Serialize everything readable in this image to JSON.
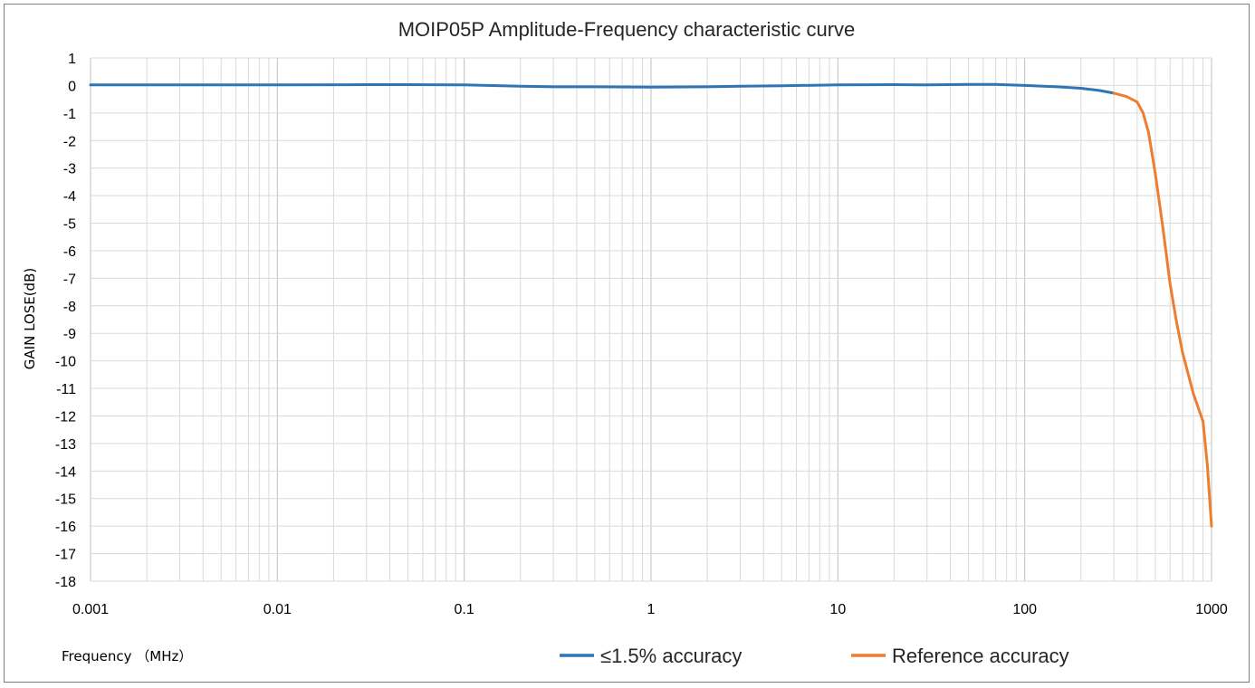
{
  "chart_data": {
    "type": "line",
    "title": "MOIP05P Amplitude-Frequency characteristic curve",
    "xlabel": "Frequency （MHz）",
    "ylabel": "GAIN LOSE(dB)",
    "x_scale": "log",
    "xlim": [
      0.001,
      1000
    ],
    "ylim": [
      -18,
      1
    ],
    "x_ticks": [
      "0.001",
      "0.01",
      "0.1",
      "1",
      "10",
      "100",
      "1000"
    ],
    "y_ticks": [
      "1",
      "0",
      "-1",
      "-2",
      "-3",
      "-4",
      "-5",
      "-6",
      "-7",
      "-8",
      "-9",
      "-10",
      "-11",
      "-12",
      "-13",
      "-14",
      "-15",
      "-16",
      "-17",
      "-18"
    ],
    "grid": true,
    "legend_position": "bottom",
    "series": [
      {
        "name": "≤1.5% accuracy",
        "color": "#2e75b6",
        "x": [
          0.001,
          0.003,
          0.01,
          0.03,
          0.05,
          0.1,
          0.2,
          0.3,
          0.5,
          1,
          2,
          3,
          5,
          10,
          20,
          30,
          50,
          70,
          100,
          150,
          200,
          250,
          300
        ],
        "y": [
          0.02,
          0.02,
          0.02,
          0.03,
          0.03,
          0.02,
          -0.03,
          -0.05,
          -0.05,
          -0.06,
          -0.05,
          -0.03,
          -0.01,
          0.02,
          0.03,
          0.02,
          0.04,
          0.04,
          0.0,
          -0.05,
          -0.1,
          -0.18,
          -0.28
        ]
      },
      {
        "name": "Reference accuracy",
        "color": "#ed7d31",
        "x": [
          300,
          350,
          400,
          430,
          460,
          500,
          550,
          600,
          650,
          700,
          800,
          900,
          950,
          1000
        ],
        "y": [
          -0.28,
          -0.4,
          -0.6,
          -1.0,
          -1.7,
          -3.2,
          -5.2,
          -7.2,
          -8.6,
          -9.7,
          -11.2,
          -12.2,
          -13.8,
          -16.0
        ]
      }
    ]
  }
}
